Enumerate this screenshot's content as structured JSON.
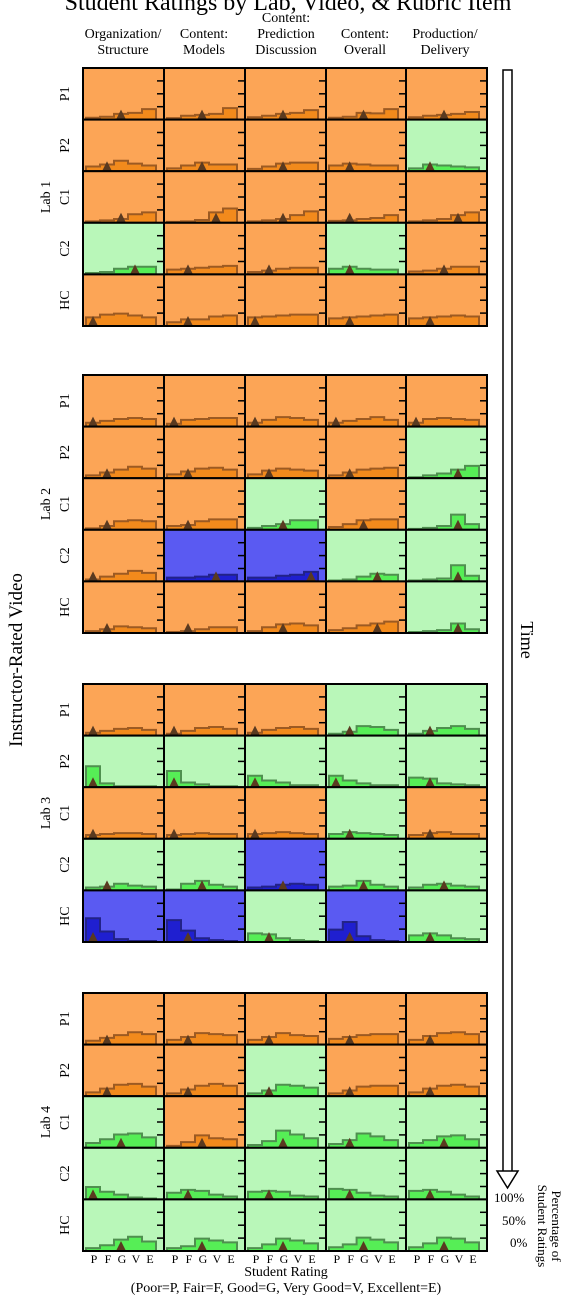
{
  "chart_data": {
    "type": "histogram-grid",
    "title": "Student Ratings by Lab, Video, & Rubric Item",
    "columns": [
      {
        "line1": "Organization/",
        "line2": "Structure"
      },
      {
        "line1": "Content:",
        "line2": "Models"
      },
      {
        "line0": "Content:",
        "line1": "Prediction",
        "line2": "Discussion"
      },
      {
        "line1": "Content:",
        "line2": "Overall"
      },
      {
        "line1": "Production/",
        "line2": "Delivery"
      }
    ],
    "row_labels": [
      "P1",
      "P2",
      "C1",
      "C2",
      "HC"
    ],
    "lab_labels": [
      "Lab 1",
      "Lab 2",
      "Lab 3",
      "Lab 4"
    ],
    "y_axis_title": "Instructor-Rated Video",
    "time_label": "Time",
    "x_categories": [
      "P",
      "F",
      "G",
      "V",
      "E"
    ],
    "x_axis_title": "Student Rating",
    "x_axis_subtitle": "(Poor=P, Fair=F, Good=G, Very Good=V, Excellent=E)",
    "percent_axis_title": [
      "Percentage of",
      "Student Ratings"
    ],
    "percent_ticks": [
      "100%",
      "50%",
      "0%"
    ],
    "colors": {
      "orange_bg": "#fca556",
      "orange_fill": "#f28a1c",
      "orange_line": "#9c5a22",
      "green_bg": "#b9f7b9",
      "green_fill": "#56ee56",
      "green_line": "#4f8f4f",
      "blue_bg": "#5a5af2",
      "blue_fill": "#1f1fd0",
      "blue_line": "#222288",
      "marker": "#5a3a20",
      "border": "#000000"
    },
    "cells": [
      [
        {
          "c": "o",
          "v": [
            4,
            6,
            12,
            14,
            22
          ],
          "m": 2
        },
        {
          "c": "o",
          "v": [
            3,
            8,
            10,
            12,
            24
          ],
          "m": 2
        },
        {
          "c": "o",
          "v": [
            5,
            8,
            12,
            14,
            20
          ],
          "m": 2
        },
        {
          "c": "o",
          "v": [
            4,
            6,
            14,
            13,
            22
          ],
          "m": 2
        },
        {
          "c": "o",
          "v": [
            5,
            8,
            10,
            12,
            16
          ],
          "m": 2
        }
      ],
      [
        {
          "c": "o",
          "v": [
            10,
            14,
            22,
            16,
            12
          ],
          "m": 1
        },
        {
          "c": "o",
          "v": [
            6,
            12,
            18,
            14,
            14
          ],
          "m": 2
        },
        {
          "c": "o",
          "v": [
            5,
            10,
            16,
            18,
            18
          ],
          "m": 2
        },
        {
          "c": "o",
          "v": [
            12,
            16,
            14,
            12,
            12
          ],
          "m": 1
        },
        {
          "c": "g",
          "v": [
            6,
            14,
            12,
            10,
            8
          ],
          "m": 1
        }
      ],
      [
        {
          "c": "o",
          "v": [
            3,
            5,
            8,
            18,
            22
          ],
          "m": 2
        },
        {
          "c": "o",
          "v": [
            2,
            3,
            6,
            22,
            30
          ],
          "m": 3
        },
        {
          "c": "o",
          "v": [
            3,
            5,
            8,
            16,
            24
          ],
          "m": 2
        },
        {
          "c": "o",
          "v": [
            4,
            5,
            8,
            10,
            16
          ],
          "m": 1
        },
        {
          "c": "o",
          "v": [
            3,
            5,
            8,
            16,
            22
          ],
          "m": 3
        }
      ],
      [
        {
          "c": "g",
          "v": [
            3,
            5,
            12,
            16,
            16
          ],
          "m": 3
        },
        {
          "c": "o",
          "v": [
            10,
            12,
            14,
            16,
            18
          ],
          "m": 1
        },
        {
          "c": "o",
          "v": [
            5,
            8,
            12,
            14,
            14
          ],
          "m": 1
        },
        {
          "c": "g",
          "v": [
            12,
            16,
            12,
            10,
            10
          ],
          "m": 1
        },
        {
          "c": "o",
          "v": [
            6,
            8,
            12,
            16,
            16
          ],
          "m": 2
        }
      ],
      [
        {
          "c": "o",
          "v": [
            18,
            24,
            26,
            22,
            18
          ],
          "m": 0
        },
        {
          "c": "o",
          "v": [
            8,
            14,
            14,
            20,
            22
          ],
          "m": 1
        },
        {
          "c": "o",
          "v": [
            18,
            20,
            22,
            24,
            24
          ],
          "m": 0
        },
        {
          "c": "o",
          "v": [
            16,
            18,
            20,
            22,
            24
          ],
          "m": 1
        },
        {
          "c": "o",
          "v": [
            16,
            18,
            20,
            22,
            20
          ],
          "m": 1
        }
      ],
      [
        {
          "c": "o",
          "v": [
            8,
            12,
            16,
            18,
            16
          ],
          "m": 0
        },
        {
          "c": "o",
          "v": [
            6,
            14,
            16,
            18,
            18
          ],
          "m": 0
        },
        {
          "c": "o",
          "v": [
            8,
            14,
            20,
            18,
            14
          ],
          "m": 0
        },
        {
          "c": "o",
          "v": [
            8,
            12,
            16,
            20,
            14
          ],
          "m": 0
        },
        {
          "c": "o",
          "v": [
            8,
            16,
            18,
            16,
            14
          ],
          "m": 0
        }
      ],
      [
        {
          "c": "o",
          "v": [
            6,
            12,
            18,
            24,
            20
          ],
          "m": 1
        },
        {
          "c": "o",
          "v": [
            8,
            14,
            20,
            22,
            18
          ],
          "m": 1
        },
        {
          "c": "o",
          "v": [
            8,
            16,
            20,
            18,
            16
          ],
          "m": 1
        },
        {
          "c": "o",
          "v": [
            6,
            12,
            18,
            20,
            22
          ],
          "m": 1
        },
        {
          "c": "g",
          "v": [
            2,
            6,
            10,
            18,
            26
          ],
          "m": 3
        }
      ],
      [
        {
          "c": "o",
          "v": [
            3,
            8,
            18,
            20,
            18
          ],
          "m": 1
        },
        {
          "c": "o",
          "v": [
            8,
            10,
            18,
            22,
            22
          ],
          "m": 1
        },
        {
          "c": "g",
          "v": [
            4,
            8,
            12,
            20,
            20
          ],
          "m": 2
        },
        {
          "c": "o",
          "v": [
            6,
            12,
            20,
            22,
            22
          ],
          "m": 2
        },
        {
          "c": "g",
          "v": [
            2,
            4,
            8,
            32,
            12
          ],
          "m": 3
        }
      ],
      [
        {
          "c": "o",
          "v": [
            4,
            10,
            16,
            22,
            18
          ],
          "m": 0
        },
        {
          "c": "b",
          "v": [
            8,
            8,
            10,
            14,
            14
          ],
          "m": 3
        },
        {
          "c": "b",
          "v": [
            8,
            8,
            12,
            14,
            20
          ],
          "m": 4
        },
        {
          "c": "g",
          "v": [
            2,
            4,
            10,
            16,
            14
          ],
          "m": 3
        },
        {
          "c": "g",
          "v": [
            2,
            4,
            6,
            34,
            12
          ],
          "m": 3
        }
      ],
      [
        {
          "c": "o",
          "v": [
            4,
            8,
            14,
            12,
            10
          ],
          "m": 1
        },
        {
          "c": "o",
          "v": [
            2,
            4,
            8,
            12,
            12
          ],
          "m": 1
        },
        {
          "c": "o",
          "v": [
            4,
            12,
            18,
            20,
            16
          ],
          "m": 2
        },
        {
          "c": "o",
          "v": [
            6,
            10,
            16,
            20,
            24
          ],
          "m": 3
        },
        {
          "c": "g",
          "v": [
            2,
            4,
            6,
            20,
            8
          ],
          "m": 3
        }
      ],
      [
        {
          "c": "o",
          "v": [
            6,
            10,
            14,
            16,
            12
          ],
          "m": 0
        },
        {
          "c": "o",
          "v": [
            4,
            10,
            16,
            18,
            14
          ],
          "m": 0
        },
        {
          "c": "o",
          "v": [
            6,
            12,
            16,
            18,
            14
          ],
          "m": 0
        },
        {
          "c": "g",
          "v": [
            4,
            8,
            20,
            18,
            12
          ],
          "m": 1
        },
        {
          "c": "g",
          "v": [
            4,
            10,
            16,
            20,
            14
          ],
          "m": 1
        }
      ],
      [
        {
          "c": "g",
          "v": [
            44,
            8,
            2,
            2,
            2
          ],
          "m": 0
        },
        {
          "c": "g",
          "v": [
            34,
            10,
            6,
            2,
            2
          ],
          "m": 0
        },
        {
          "c": "g",
          "v": [
            24,
            14,
            10,
            4,
            4
          ],
          "m": 0
        },
        {
          "c": "g",
          "v": [
            24,
            14,
            8,
            4,
            4
          ],
          "m": 0
        },
        {
          "c": "g",
          "v": [
            20,
            18,
            8,
            6,
            4
          ],
          "m": 1
        }
      ],
      [
        {
          "c": "o",
          "v": [
            8,
            10,
            12,
            12,
            10
          ],
          "m": 0
        },
        {
          "c": "o",
          "v": [
            8,
            10,
            12,
            10,
            10
          ],
          "m": 0
        },
        {
          "c": "o",
          "v": [
            10,
            12,
            14,
            12,
            10
          ],
          "m": 0
        },
        {
          "c": "g",
          "v": [
            10,
            14,
            12,
            10,
            8
          ],
          "m": 1
        },
        {
          "c": "o",
          "v": [
            8,
            12,
            14,
            10,
            10
          ],
          "m": 1
        }
      ],
      [
        {
          "c": "g",
          "v": [
            6,
            8,
            14,
            10,
            8
          ],
          "m": 1
        },
        {
          "c": "g",
          "v": [
            2,
            14,
            20,
            12,
            8
          ],
          "m": 2
        },
        {
          "c": "b",
          "v": [
            6,
            8,
            12,
            14,
            12
          ],
          "m": 2
        },
        {
          "c": "g",
          "v": [
            8,
            10,
            20,
            12,
            8
          ],
          "m": 2
        },
        {
          "c": "g",
          "v": [
            6,
            12,
            14,
            10,
            8
          ],
          "m": 2
        }
      ],
      [
        {
          "c": "b",
          "v": [
            50,
            22,
            6,
            2,
            2
          ],
          "m": 0
        },
        {
          "c": "b",
          "v": [
            46,
            24,
            8,
            4,
            2
          ],
          "m": 1
        },
        {
          "c": "g",
          "v": [
            18,
            16,
            8,
            4,
            2
          ],
          "m": 1
        },
        {
          "c": "b",
          "v": [
            26,
            42,
            12,
            4,
            2
          ],
          "m": 1
        },
        {
          "c": "g",
          "v": [
            14,
            18,
            14,
            8,
            6
          ],
          "m": 1
        }
      ],
      [
        {
          "c": "o",
          "v": [
            8,
            14,
            20,
            26,
            22
          ],
          "m": 1
        },
        {
          "c": "o",
          "v": [
            10,
            16,
            24,
            22,
            20
          ],
          "m": 1
        },
        {
          "c": "o",
          "v": [
            10,
            16,
            24,
            20,
            18
          ],
          "m": 1
        },
        {
          "c": "o",
          "v": [
            12,
            16,
            20,
            22,
            22
          ],
          "m": 1
        },
        {
          "c": "o",
          "v": [
            10,
            18,
            24,
            26,
            22
          ],
          "m": 1
        }
      ],
      [
        {
          "c": "o",
          "v": [
            8,
            16,
            24,
            26,
            20
          ],
          "m": 1
        },
        {
          "c": "o",
          "v": [
            6,
            14,
            22,
            26,
            22
          ],
          "m": 1
        },
        {
          "c": "g",
          "v": [
            6,
            12,
            24,
            22,
            18
          ],
          "m": 1
        },
        {
          "c": "o",
          "v": [
            6,
            12,
            20,
            22,
            22
          ],
          "m": 1
        },
        {
          "c": "o",
          "v": [
            8,
            16,
            22,
            24,
            20
          ],
          "m": 1
        }
      ],
      [
        {
          "c": "g",
          "v": [
            10,
            18,
            28,
            30,
            22
          ],
          "m": 2
        },
        {
          "c": "o",
          "v": [
            4,
            12,
            26,
            20,
            18
          ],
          "m": 2
        },
        {
          "c": "g",
          "v": [
            6,
            14,
            36,
            28,
            20
          ],
          "m": 2
        },
        {
          "c": "g",
          "v": [
            8,
            16,
            30,
            24,
            16
          ],
          "m": 1
        },
        {
          "c": "g",
          "v": [
            10,
            16,
            24,
            26,
            18
          ],
          "m": 2
        }
      ],
      [
        {
          "c": "g",
          "v": [
            26,
            16,
            10,
            4,
            2
          ],
          "m": 0
        },
        {
          "c": "g",
          "v": [
            14,
            20,
            18,
            10,
            6
          ],
          "m": 1
        },
        {
          "c": "g",
          "v": [
            16,
            18,
            16,
            8,
            6
          ],
          "m": 1
        },
        {
          "c": "g",
          "v": [
            22,
            20,
            14,
            8,
            6
          ],
          "m": 1
        },
        {
          "c": "g",
          "v": [
            18,
            20,
            16,
            10,
            6
          ],
          "m": 1
        }
      ],
      [
        {
          "c": "g",
          "v": [
            6,
            12,
            24,
            30,
            20
          ],
          "m": 2
        },
        {
          "c": "g",
          "v": [
            6,
            10,
            26,
            22,
            18
          ],
          "m": 2
        },
        {
          "c": "g",
          "v": [
            6,
            14,
            26,
            22,
            16
          ],
          "m": 2
        },
        {
          "c": "g",
          "v": [
            8,
            14,
            28,
            24,
            18
          ],
          "m": 2
        },
        {
          "c": "g",
          "v": [
            8,
            16,
            28,
            26,
            18
          ],
          "m": 2
        }
      ]
    ]
  }
}
